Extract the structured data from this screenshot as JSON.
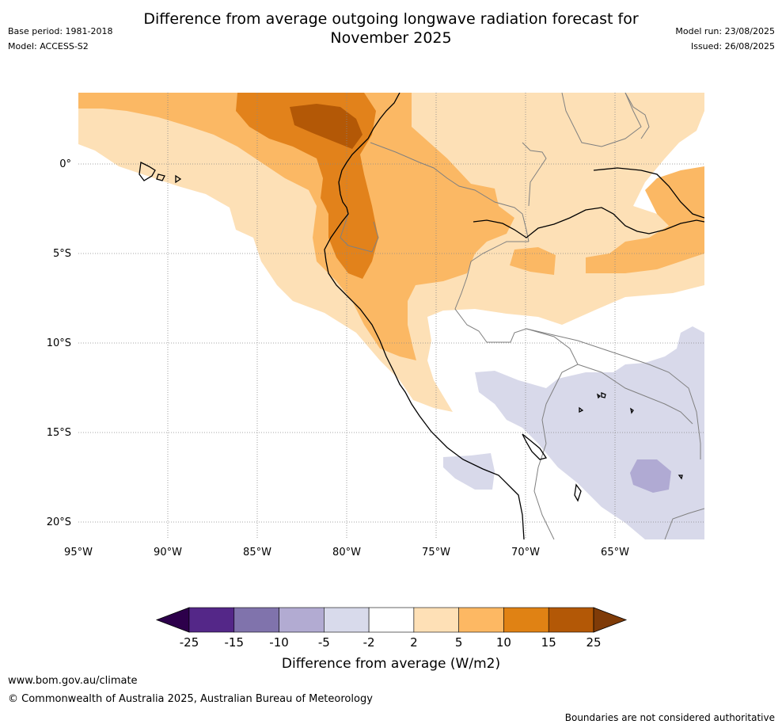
{
  "header": {
    "title_line1": "Difference from average outgoing longwave radiation forecast for",
    "title_line2": "November 2025",
    "base_period": "Base period: 1981-2018",
    "model": "Model: ACCESS-S2",
    "model_run": "Model run: 23/08/2025",
    "issued": "Issued: 26/08/2025"
  },
  "map": {
    "lon_labels": [
      "95°W",
      "90°W",
      "85°W",
      "80°W",
      "75°W",
      "70°W",
      "65°W"
    ],
    "lat_labels": [
      "0°",
      "5°S",
      "10°S",
      "15°S",
      "20°S"
    ],
    "colors": {
      "lt_orange": "#fde0b6",
      "orange": "#fbb864",
      "dk_orange": "#e2821b",
      "brown": "#b35806",
      "lt_purple": "#d8d9ea",
      "purple": "#b0aad3",
      "coast": "#000000",
      "border": "#808080"
    }
  },
  "colorbar": {
    "tick_labels": [
      "-25",
      "-15",
      "-10",
      "-5",
      "-2",
      "2",
      "5",
      "10",
      "15",
      "25"
    ],
    "bin_colors": [
      "#542788",
      "#8073ac",
      "#b2abd2",
      "#d8daeb",
      "#ffffff",
      "#fee0b6",
      "#fdb863",
      "#e08214",
      "#b35806"
    ],
    "under_color": "#2d004b",
    "over_color": "#7f3b08",
    "label": "Difference from average (W/m2)"
  },
  "footer": {
    "website": "www.bom.gov.au/climate",
    "copyright": "© Commonwealth of Australia 2025, Australian Bureau of Meteorology",
    "disclaimer": "Boundaries are not considered authoritative"
  }
}
